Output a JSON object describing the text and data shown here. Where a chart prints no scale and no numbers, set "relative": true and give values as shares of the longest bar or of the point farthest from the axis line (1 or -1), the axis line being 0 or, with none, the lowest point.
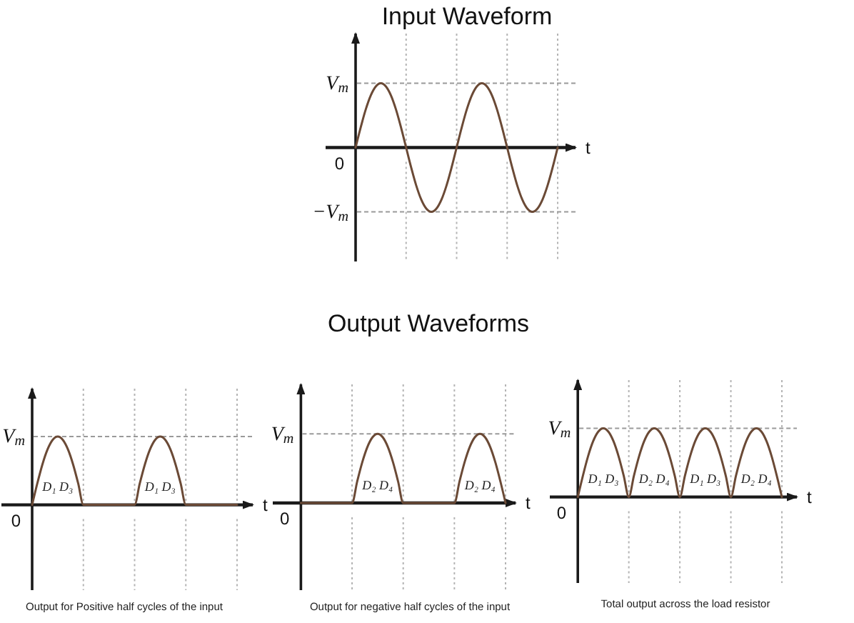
{
  "chart_data": [
    {
      "type": "line",
      "title": "Input Waveform",
      "xlabel": "t",
      "relative": true,
      "categories": [
        null,
        null,
        null,
        null,
        null,
        null,
        null,
        null,
        null,
        null,
        null,
        null,
        null,
        null,
        null,
        null,
        null,
        null,
        null,
        null,
        null,
        null,
        null,
        null,
        null,
        null,
        null,
        null,
        null,
        null,
        null,
        null,
        null,
        null,
        null,
        null,
        null,
        null,
        null,
        null,
        null
      ],
      "series": [
        {
          "color": "#6b4a36",
          "values": [
            0,
            0.31,
            0.59,
            0.81,
            0.95,
            1,
            0.95,
            0.81,
            0.59,
            0.31,
            0,
            -0.31,
            -0.59,
            -0.81,
            -0.95,
            -1,
            -0.95,
            -0.81,
            -0.59,
            -0.31,
            0,
            0.31,
            0.59,
            0.81,
            0.95,
            1,
            0.95,
            0.81,
            0.59,
            0.31,
            0,
            -0.31,
            -0.59,
            -0.81,
            -0.95,
            -1,
            -0.95,
            -0.81,
            -0.59,
            -0.31,
            0
          ]
        }
      ],
      "ref_lines": [
        {
          "axis": "y",
          "value": 1,
          "label": "V$_{m}$",
          "color": "#9a9a9a",
          "line_style": "dashed"
        },
        {
          "axis": "y",
          "value": -1,
          "label": "−V$_{m}$",
          "color": "#9a9a9a",
          "line_style": "dashed"
        }
      ],
      "grid": "x",
      "annotations": [
        "0"
      ]
    },
    {
      "type": "line",
      "xlabel": "t",
      "relative": true,
      "categories": [
        null,
        null,
        null,
        null,
        null,
        null,
        null,
        null,
        null,
        null,
        null,
        null,
        null,
        null,
        null,
        null,
        null,
        null,
        null,
        null,
        null,
        null,
        null,
        null,
        null,
        null,
        null,
        null,
        null,
        null,
        null,
        null,
        null,
        null,
        null,
        null,
        null,
        null,
        null,
        null,
        null
      ],
      "series": [
        {
          "color": "#6b4a36",
          "values": [
            0,
            0.31,
            0.59,
            0.81,
            0.95,
            1,
            0.95,
            0.81,
            0.59,
            0.31,
            0,
            0,
            0,
            0,
            0,
            0,
            0,
            0,
            0,
            0,
            0,
            0.31,
            0.59,
            0.81,
            0.95,
            1,
            0.95,
            0.81,
            0.59,
            0.31,
            0,
            0,
            0,
            0,
            0,
            0,
            0,
            0,
            0,
            0,
            0
          ]
        }
      ],
      "ref_lines": [
        {
          "axis": "y",
          "value": 1,
          "label": "V$_{m}$",
          "color": "#9a9a9a",
          "line_style": "dashed"
        }
      ],
      "grid": "x",
      "annotations": [
        "0",
        "D₁ D₃",
        "D₁ D₃",
        "Output for Positive half cycles of the input"
      ]
    },
    {
      "type": "line",
      "title": "Output Waveforms",
      "xlabel": "t",
      "relative": true,
      "categories": [
        null,
        null,
        null,
        null,
        null,
        null,
        null,
        null,
        null,
        null,
        null,
        null,
        null,
        null,
        null,
        null,
        null,
        null,
        null,
        null,
        null,
        null,
        null,
        null,
        null,
        null,
        null,
        null,
        null,
        null,
        null,
        null,
        null,
        null,
        null,
        null,
        null,
        null,
        null,
        null,
        null
      ],
      "series": [
        {
          "color": "#6b4a36",
          "values": [
            0,
            0,
            0,
            0,
            0,
            0,
            0,
            0,
            0,
            0,
            0,
            0.31,
            0.59,
            0.81,
            0.95,
            1,
            0.95,
            0.81,
            0.59,
            0.31,
            0,
            0,
            0,
            0,
            0,
            0,
            0,
            0,
            0,
            0,
            0,
            0.31,
            0.59,
            0.81,
            0.95,
            1,
            0.95,
            0.81,
            0.59,
            0.31,
            0
          ]
        }
      ],
      "ref_lines": [
        {
          "axis": "y",
          "value": 1,
          "label": "V$_{m}$",
          "color": "#9a9a9a",
          "line_style": "dashed"
        }
      ],
      "grid": "x",
      "annotations": [
        "0",
        "D₂ D₄",
        "D₂ D₄",
        "Output for negative half cycles of the input"
      ]
    },
    {
      "type": "line",
      "xlabel": "t",
      "relative": true,
      "categories": [
        null,
        null,
        null,
        null,
        null,
        null,
        null,
        null,
        null,
        null,
        null,
        null,
        null,
        null,
        null,
        null,
        null,
        null,
        null,
        null,
        null,
        null,
        null,
        null,
        null,
        null,
        null,
        null,
        null,
        null,
        null,
        null,
        null,
        null,
        null,
        null,
        null,
        null,
        null,
        null,
        null
      ],
      "series": [
        {
          "color": "#6b4a36",
          "values": [
            0,
            0.31,
            0.59,
            0.81,
            0.95,
            1,
            0.95,
            0.81,
            0.59,
            0.31,
            0,
            0.31,
            0.59,
            0.81,
            0.95,
            1,
            0.95,
            0.81,
            0.59,
            0.31,
            0,
            0.31,
            0.59,
            0.81,
            0.95,
            1,
            0.95,
            0.81,
            0.59,
            0.31,
            0,
            0.31,
            0.59,
            0.81,
            0.95,
            1,
            0.95,
            0.81,
            0.59,
            0.31,
            0
          ]
        }
      ],
      "ref_lines": [
        {
          "axis": "y",
          "value": 1,
          "label": "V$_{m}$",
          "color": "#9a9a9a",
          "line_style": "dashed"
        }
      ],
      "grid": "x",
      "annotations": [
        "0",
        "D₁ D₃",
        "D₂ D₄",
        "D₁ D₃",
        "D₂ D₄",
        "Total output across the load resistor"
      ]
    }
  ]
}
